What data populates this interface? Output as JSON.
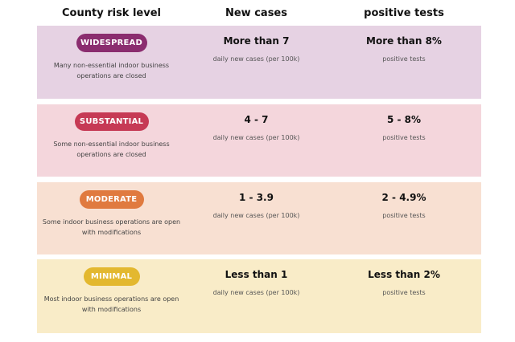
{
  "headers": {
    "risk": "County risk level",
    "cases": "New cases",
    "tests": "positive tests"
  },
  "tiers": [
    {
      "label": "WIDESPREAD",
      "color": "#8b2d6f",
      "bg": "#e6d2e3",
      "description": "Many non-essential indoor business operations are closed",
      "cases": "More than 7",
      "cases_note": "daily new cases (per 100k)",
      "tests": "More than 8%",
      "tests_note": "positive tests"
    },
    {
      "label": "SUBSTANTIAL",
      "color": "#c63a55",
      "bg": "#f4d6dc",
      "description": "Some non-essential indoor business operations are closed",
      "cases": "4 - 7",
      "cases_note": "daily new cases (per 100k)",
      "tests": "5 - 8%",
      "tests_note": "positive tests"
    },
    {
      "label": "MODERATE",
      "color": "#e07a3f",
      "bg": "#f8e0d2",
      "description": "Some indoor business operations are open with modifications",
      "cases": "1 - 3.9",
      "cases_note": "daily new cases (per 100k)",
      "tests": "2 - 4.9%",
      "tests_note": "positive tests"
    },
    {
      "label": "MINIMAL",
      "color": "#e3b82f",
      "bg": "#f9ecc8",
      "description": "Most indoor business operations are open with modifications",
      "cases": "Less than 1",
      "cases_note": "daily new cases (per 100k)",
      "tests": "Less than 2%",
      "tests_note": "positive tests"
    }
  ]
}
